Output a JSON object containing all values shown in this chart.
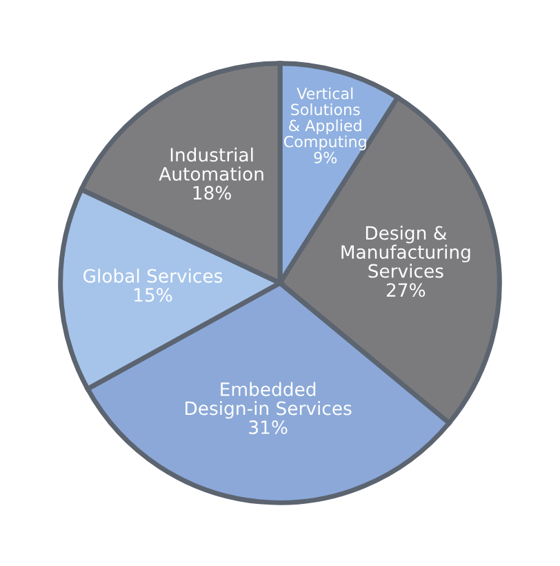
{
  "chart_data": {
    "type": "pie",
    "categories": [
      "Vertical\nSolutions\n& Applied\nComputing",
      "Design &\nManufacturing\nServices",
      "Embedded\nDesign-in Services",
      "Global Services",
      "Industrial\nAutomation"
    ],
    "values": [
      9,
      27,
      31,
      15,
      18
    ],
    "value_labels": [
      "9%",
      "27%",
      "31%",
      "15%",
      "18%"
    ],
    "colors": [
      "#8fb0e0",
      "#7b7b7d",
      "#8ba8d8",
      "#a6c4ea",
      "#7d7d80"
    ]
  }
}
